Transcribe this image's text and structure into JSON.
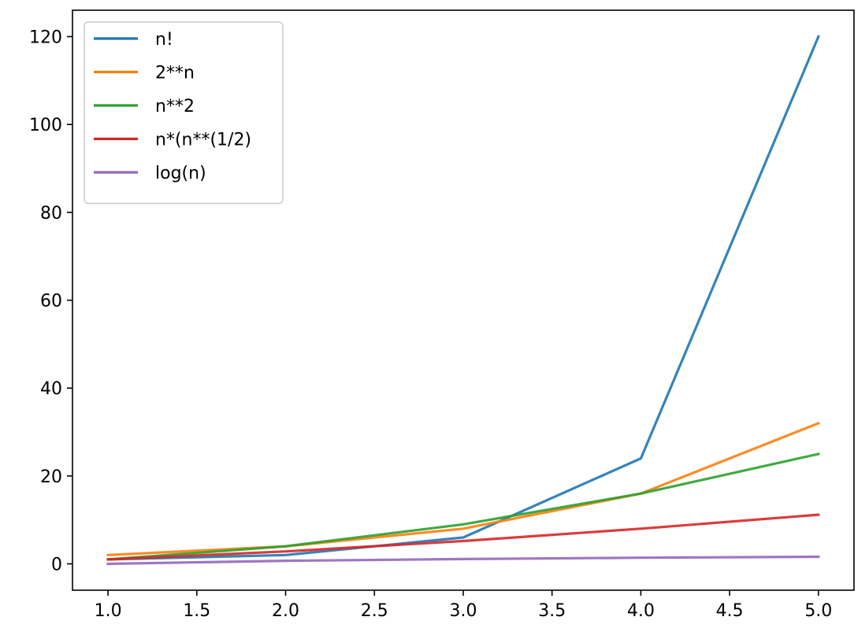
{
  "chart_data": {
    "type": "line",
    "title": "",
    "xlabel": "",
    "ylabel": "",
    "x": [
      1,
      2,
      3,
      4,
      5
    ],
    "xlim": [
      0.8,
      5.2
    ],
    "ylim": [
      -6,
      126
    ],
    "x_ticks": [
      1.0,
      1.5,
      2.0,
      2.5,
      3.0,
      3.5,
      4.0,
      4.5,
      5.0
    ],
    "x_tick_labels": [
      "1.0",
      "1.5",
      "2.0",
      "2.5",
      "3.0",
      "3.5",
      "4.0",
      "4.5",
      "5.0"
    ],
    "y_ticks": [
      0,
      20,
      40,
      60,
      80,
      100,
      120
    ],
    "y_tick_labels": [
      "0",
      "20",
      "40",
      "60",
      "80",
      "100",
      "120"
    ],
    "grid": false,
    "legend_position": "top-left",
    "series": [
      {
        "name": "n!",
        "color": "#1f77b4",
        "values": [
          1,
          2,
          6,
          24,
          120
        ]
      },
      {
        "name": "2**n",
        "color": "#ff7f0e",
        "values": [
          2,
          4,
          8,
          16,
          32
        ]
      },
      {
        "name": "n**2",
        "color": "#2ca02c",
        "values": [
          1,
          4,
          9,
          16,
          25
        ]
      },
      {
        "name": "n*(n**(1/2)",
        "color": "#d62728",
        "values": [
          1,
          2.83,
          5.2,
          8,
          11.18
        ]
      },
      {
        "name": "log(n)",
        "color": "#9467bd",
        "values": [
          0,
          0.69,
          1.1,
          1.39,
          1.61
        ]
      }
    ]
  }
}
